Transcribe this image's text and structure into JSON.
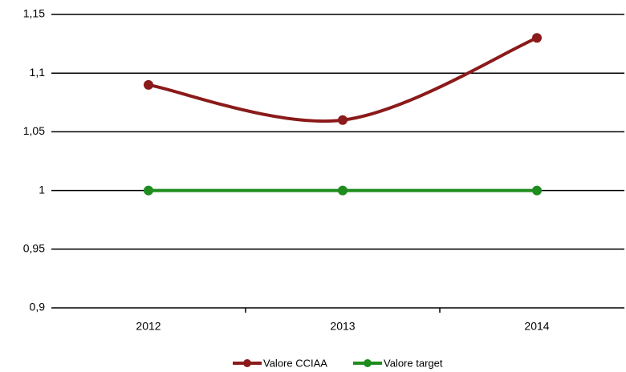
{
  "chart_data": {
    "type": "line",
    "categories": [
      "2012",
      "2013",
      "2014"
    ],
    "series": [
      {
        "name": "Valore CCIAA",
        "color": "#8b1a1a",
        "values": [
          1.09,
          1.06,
          1.13
        ],
        "smooth": true
      },
      {
        "name": "Valore target",
        "color": "#1e8c1e",
        "values": [
          1,
          1,
          1
        ],
        "smooth": false
      }
    ],
    "ylim": [
      0.9,
      1.15
    ],
    "yticks": [
      {
        "value": 0.9,
        "label": "0,9"
      },
      {
        "value": 0.95,
        "label": "0,95"
      },
      1,
      {
        "value": 1.05,
        "label": "1,05"
      },
      {
        "value": 1.1,
        "label": "1,1"
      },
      {
        "value": 1.15,
        "label": "1,15"
      }
    ],
    "grid": true,
    "legend": "bottom"
  }
}
